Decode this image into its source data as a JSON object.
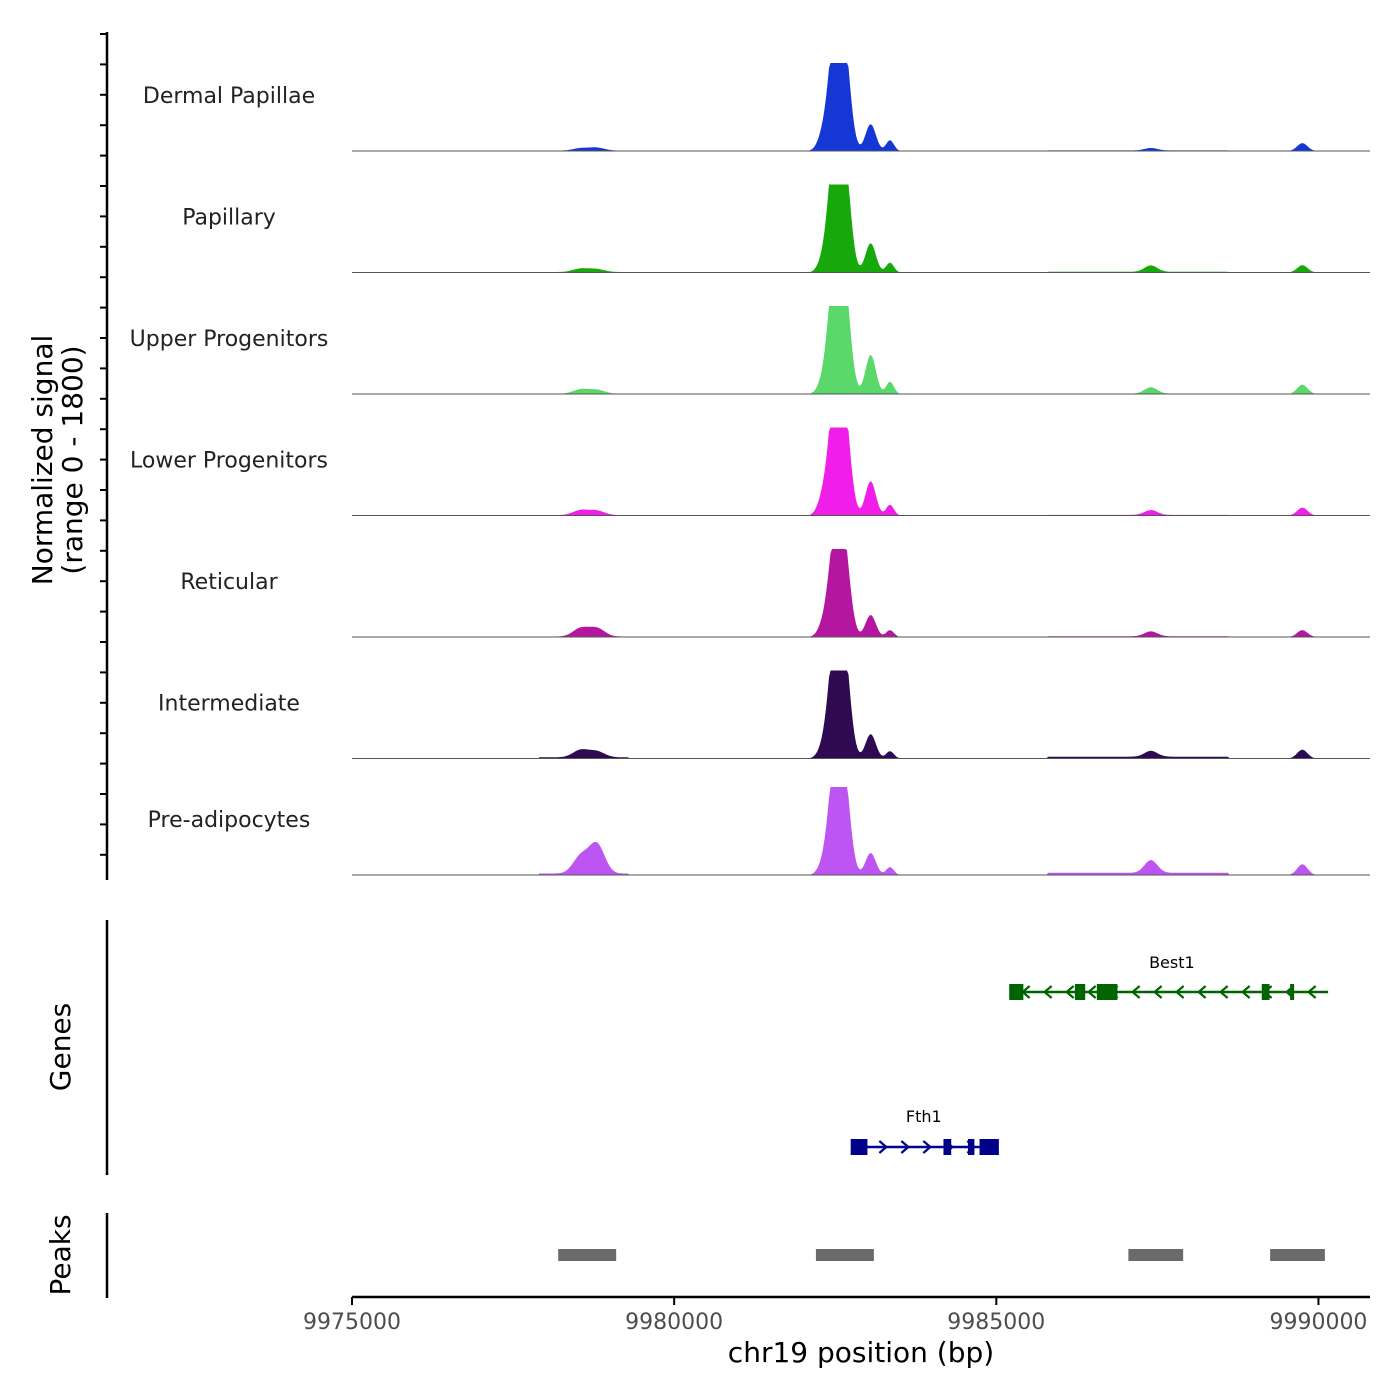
{
  "chart_data": {
    "type": "area",
    "title": "",
    "y_axis_title_line1": "Normalized signal",
    "y_axis_title_line2": "(range 0 - 1800)",
    "y_range": [
      0,
      1800
    ],
    "xlabel": "chr19 position (bp)",
    "x_range": [
      9975000,
      9990800
    ],
    "x_ticks": [
      9975000,
      9980000,
      9985000,
      9990000
    ],
    "x_tick_labels": [
      "9975000",
      "9980000",
      "9985000",
      "9990000"
    ],
    "peak_template": [
      {
        "pos": 9978550,
        "width": 120
      },
      {
        "pos": 9978800,
        "width": 120
      },
      {
        "pos": 9982300,
        "width": 80
      },
      {
        "pos": 9982460,
        "width": 90
      },
      {
        "pos": 9982560,
        "width": 80
      },
      {
        "pos": 9982660,
        "width": 90
      },
      {
        "pos": 9983050,
        "width": 80
      },
      {
        "pos": 9983350,
        "width": 60
      },
      {
        "pos": 9987400,
        "width": 100
      },
      {
        "pos": 9989750,
        "width": 80
      }
    ],
    "tracks": [
      {
        "name": "Dermal Papillae",
        "color": "#1437d6",
        "heights": [
          50,
          60,
          250,
          1600,
          1700,
          1550,
          550,
          220,
          50,
          160
        ],
        "baseline": 8
      },
      {
        "name": "Papillary",
        "color": "#17a80c",
        "heights": [
          70,
          60,
          180,
          1750,
          1800,
          1700,
          600,
          200,
          130,
          150
        ],
        "baseline": 10
      },
      {
        "name": "Upper Progenitors",
        "color": "#5ad86a",
        "heights": [
          90,
          80,
          180,
          1800,
          1800,
          1650,
          800,
          250,
          130,
          190
        ],
        "baseline": 5
      },
      {
        "name": "Lower Progenitors",
        "color": "#f01ee8",
        "heights": [
          100,
          90,
          280,
          1600,
          1800,
          1550,
          700,
          220,
          100,
          160
        ],
        "baseline": 8
      },
      {
        "name": "Reticular",
        "color": "#b4169f",
        "heights": [
          170,
          170,
          170,
          1350,
          1450,
          1300,
          450,
          140,
          100,
          140
        ],
        "baseline": 10
      },
      {
        "name": "Intermediate",
        "color": "#2f0a52",
        "heights": [
          150,
          120,
          160,
          1600,
          1700,
          1550,
          500,
          150,
          120,
          180
        ],
        "baseline": 25
      },
      {
        "name": "Pre-adipocytes",
        "color": "#bd55f2",
        "heights": [
          350,
          600,
          150,
          1500,
          1750,
          1400,
          450,
          160,
          260,
          220
        ],
        "baseline": 30
      }
    ],
    "genes_track_title": "Genes",
    "genes": [
      {
        "name": "Best1",
        "strand": "-",
        "color": "#006400",
        "start": 9985300,
        "end": 9990150,
        "exons": [
          [
            9985200,
            9985420
          ],
          [
            9986220,
            9986380
          ],
          [
            9986560,
            9986880
          ],
          [
            9989120,
            9989240
          ],
          [
            9989560,
            9989620
          ]
        ]
      },
      {
        "name": "Fth1",
        "strand": "+",
        "color": "#00008b",
        "start": 9982750,
        "end": 9985000,
        "exons": [
          [
            9982740,
            9983000
          ],
          [
            9984180,
            9984300
          ],
          [
            9984560,
            9984660
          ],
          [
            9984740,
            9985040
          ]
        ]
      }
    ],
    "peaks_track_title": "Peaks",
    "peak_color": "#6b6b6b",
    "peaks": [
      {
        "start": 9978200,
        "end": 9979100
      },
      {
        "start": 9982200,
        "end": 9983100
      },
      {
        "start": 9987050,
        "end": 9987900
      },
      {
        "start": 9989250,
        "end": 9990100
      }
    ]
  }
}
